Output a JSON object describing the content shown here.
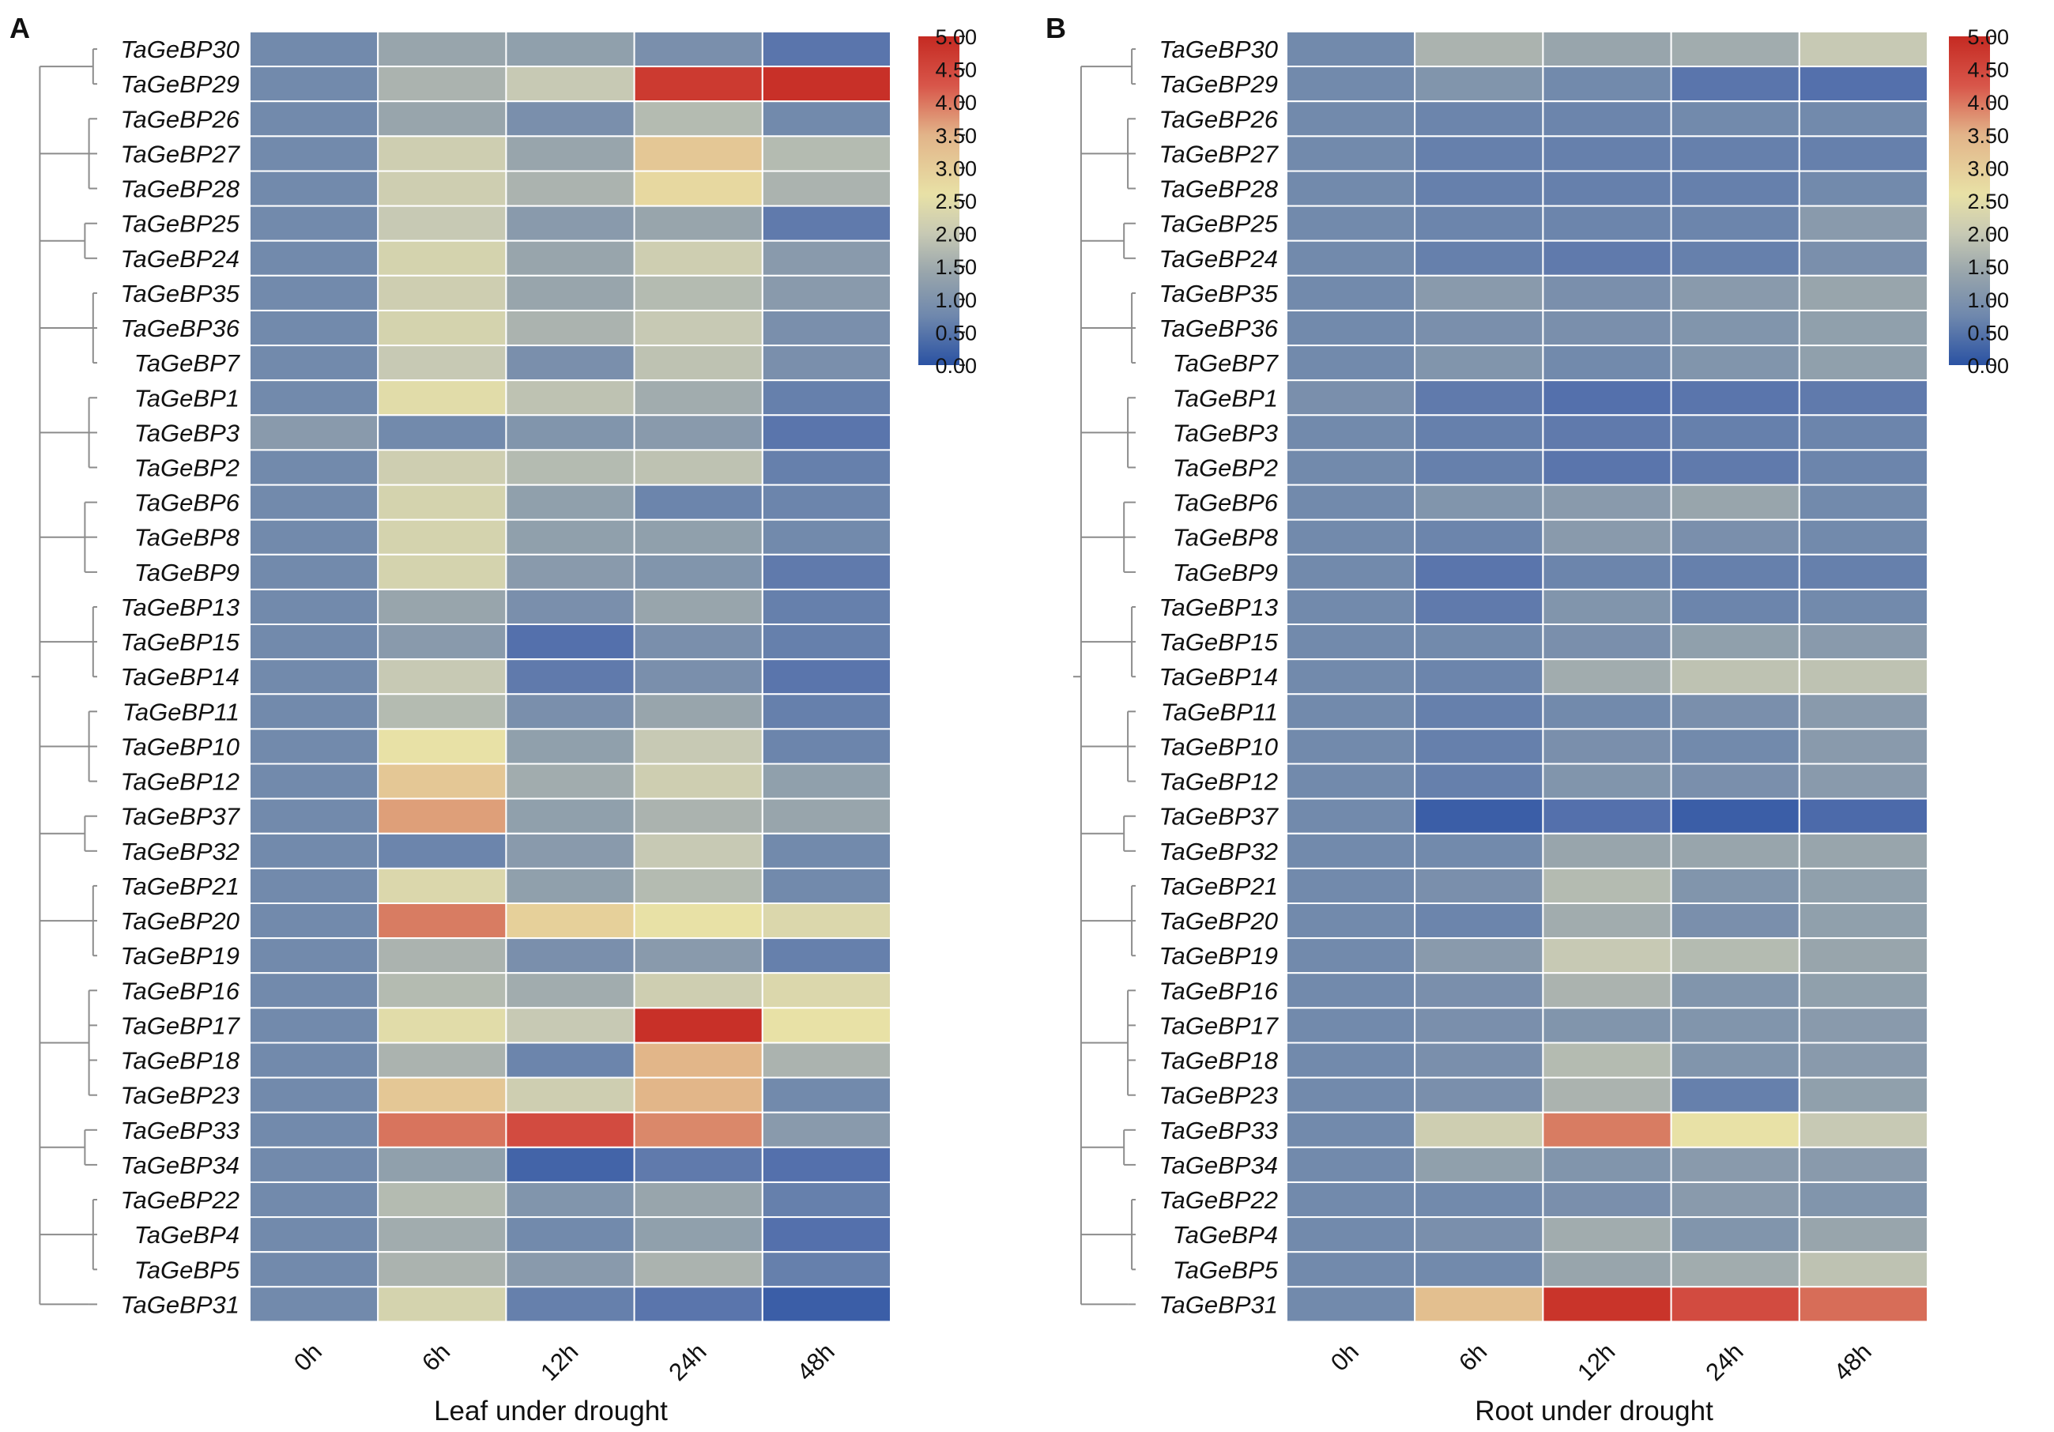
{
  "chart_data": [
    {
      "type": "heatmap",
      "panel_label": "A",
      "xlabel": "Leaf under drought",
      "categories": [
        "0h",
        "6h",
        "12h",
        "24h",
        "48h"
      ],
      "colorbar": {
        "min": 0,
        "max": 5,
        "ticks": [
          "5.00",
          "4.50",
          "4.00",
          "3.50",
          "3.00",
          "2.50",
          "2.00",
          "1.50",
          "1.00",
          "0.50",
          "0.00"
        ]
      },
      "rows": [
        "TaGeBP30",
        "TaGeBP29",
        "TaGeBP26",
        "TaGeBP27",
        "TaGeBP28",
        "TaGeBP25",
        "TaGeBP24",
        "TaGeBP35",
        "TaGeBP36",
        "TaGeBP7",
        "TaGeBP1",
        "TaGeBP3",
        "TaGeBP2",
        "TaGeBP6",
        "TaGeBP8",
        "TaGeBP9",
        "TaGeBP13",
        "TaGeBP15",
        "TaGeBP14",
        "TaGeBP11",
        "TaGeBP10",
        "TaGeBP12",
        "TaGeBP37",
        "TaGeBP32",
        "TaGeBP21",
        "TaGeBP20",
        "TaGeBP19",
        "TaGeBP16",
        "TaGeBP17",
        "TaGeBP18",
        "TaGeBP23",
        "TaGeBP33",
        "TaGeBP34",
        "TaGeBP22",
        "TaGeBP4",
        "TaGeBP5",
        "TaGeBP31"
      ],
      "values": [
        [
          1.0,
          1.5,
          1.4,
          1.1,
          0.6
        ],
        [
          1.0,
          1.7,
          2.0,
          4.5,
          4.8
        ],
        [
          1.0,
          1.5,
          1.1,
          1.8,
          1.0
        ],
        [
          1.0,
          2.1,
          1.5,
          2.8,
          1.8
        ],
        [
          1.0,
          2.1,
          1.7,
          2.6,
          1.7
        ],
        [
          1.0,
          2.0,
          1.3,
          1.5,
          0.7
        ],
        [
          1.0,
          2.2,
          1.5,
          2.1,
          1.3
        ],
        [
          1.0,
          2.1,
          1.5,
          1.8,
          1.3
        ],
        [
          1.0,
          2.2,
          1.7,
          2.0,
          1.1
        ],
        [
          1.0,
          2.0,
          1.1,
          1.9,
          1.1
        ],
        [
          1.0,
          2.4,
          1.9,
          1.6,
          0.8
        ],
        [
          1.3,
          1.0,
          1.2,
          1.3,
          0.6
        ],
        [
          1.0,
          2.1,
          1.8,
          1.9,
          0.8
        ],
        [
          1.0,
          2.2,
          1.4,
          0.9,
          0.9
        ],
        [
          1.0,
          2.2,
          1.4,
          1.4,
          1.0
        ],
        [
          1.0,
          2.2,
          1.3,
          1.2,
          0.7
        ],
        [
          1.0,
          1.5,
          1.1,
          1.5,
          0.8
        ],
        [
          1.0,
          1.3,
          0.5,
          1.1,
          0.8
        ],
        [
          1.0,
          2.0,
          0.7,
          1.1,
          0.6
        ],
        [
          1.0,
          1.8,
          1.1,
          1.5,
          0.8
        ],
        [
          1.0,
          2.5,
          1.4,
          2.0,
          0.9
        ],
        [
          1.0,
          2.8,
          1.6,
          2.1,
          1.4
        ],
        [
          1.0,
          3.2,
          1.4,
          1.7,
          1.5
        ],
        [
          1.0,
          0.9,
          1.3,
          2.0,
          1.0
        ],
        [
          1.0,
          2.3,
          1.4,
          1.8,
          1.0
        ],
        [
          1.0,
          3.5,
          2.7,
          2.5,
          2.3
        ],
        [
          1.0,
          1.7,
          1.1,
          1.3,
          0.8
        ],
        [
          1.0,
          1.8,
          1.6,
          2.1,
          2.3
        ],
        [
          1.0,
          2.4,
          2.0,
          4.8,
          2.5
        ],
        [
          1.0,
          1.7,
          0.9,
          3.0,
          1.7
        ],
        [
          1.0,
          2.8,
          2.1,
          3.0,
          1.0
        ],
        [
          1.0,
          3.6,
          4.2,
          3.4,
          1.3
        ],
        [
          1.0,
          1.4,
          0.3,
          0.7,
          0.5
        ],
        [
          1.0,
          1.8,
          1.2,
          1.5,
          0.8
        ],
        [
          1.0,
          1.6,
          1.0,
          1.4,
          0.5
        ],
        [
          1.0,
          1.7,
          1.3,
          1.7,
          0.8
        ],
        [
          1.0,
          2.2,
          0.8,
          0.6,
          0.2
        ]
      ]
    },
    {
      "type": "heatmap",
      "panel_label": "B",
      "xlabel": "Root under drought",
      "categories": [
        "0h",
        "6h",
        "12h",
        "24h",
        "48h"
      ],
      "colorbar": {
        "min": 0,
        "max": 5,
        "ticks": [
          "5.00",
          "4.50",
          "4.00",
          "3.50",
          "3.00",
          "2.50",
          "2.00",
          "1.50",
          "1.00",
          "0.50",
          "0.00"
        ]
      },
      "rows": [
        "TaGeBP30",
        "TaGeBP29",
        "TaGeBP26",
        "TaGeBP27",
        "TaGeBP28",
        "TaGeBP25",
        "TaGeBP24",
        "TaGeBP35",
        "TaGeBP36",
        "TaGeBP7",
        "TaGeBP1",
        "TaGeBP3",
        "TaGeBP2",
        "TaGeBP6",
        "TaGeBP8",
        "TaGeBP9",
        "TaGeBP13",
        "TaGeBP15",
        "TaGeBP14",
        "TaGeBP11",
        "TaGeBP10",
        "TaGeBP12",
        "TaGeBP37",
        "TaGeBP32",
        "TaGeBP21",
        "TaGeBP20",
        "TaGeBP19",
        "TaGeBP16",
        "TaGeBP17",
        "TaGeBP18",
        "TaGeBP23",
        "TaGeBP33",
        "TaGeBP34",
        "TaGeBP22",
        "TaGeBP4",
        "TaGeBP5",
        "TaGeBP31"
      ],
      "values": [
        [
          1.0,
          1.7,
          1.5,
          1.6,
          2.0
        ],
        [
          1.0,
          1.2,
          1.0,
          0.6,
          0.5
        ],
        [
          1.0,
          0.9,
          0.9,
          1.0,
          1.0
        ],
        [
          1.0,
          0.8,
          0.8,
          0.8,
          0.8
        ],
        [
          1.0,
          0.8,
          0.8,
          0.8,
          1.0
        ],
        [
          1.0,
          0.9,
          0.9,
          0.9,
          1.3
        ],
        [
          1.0,
          0.8,
          0.7,
          0.8,
          1.1
        ],
        [
          1.0,
          1.3,
          1.1,
          1.3,
          1.5
        ],
        [
          1.0,
          1.1,
          1.1,
          1.2,
          1.4
        ],
        [
          1.0,
          1.2,
          1.0,
          1.2,
          1.4
        ],
        [
          1.1,
          0.7,
          0.5,
          0.6,
          0.7
        ],
        [
          1.0,
          0.8,
          0.7,
          0.8,
          0.9
        ],
        [
          1.0,
          0.8,
          0.6,
          0.7,
          0.9
        ],
        [
          1.0,
          1.2,
          1.3,
          1.5,
          1.0
        ],
        [
          1.0,
          0.9,
          1.3,
          1.1,
          1.0
        ],
        [
          1.0,
          0.6,
          0.9,
          0.8,
          0.8
        ],
        [
          1.0,
          0.7,
          1.2,
          0.9,
          1.0
        ],
        [
          1.0,
          1.0,
          1.1,
          1.4,
          1.3
        ],
        [
          1.0,
          0.9,
          1.6,
          1.9,
          1.9
        ],
        [
          1.0,
          0.8,
          1.0,
          1.1,
          1.3
        ],
        [
          1.0,
          0.8,
          1.1,
          1.0,
          1.3
        ],
        [
          1.0,
          0.8,
          1.2,
          1.1,
          1.3
        ],
        [
          1.0,
          0.2,
          0.5,
          0.2,
          0.4
        ],
        [
          1.0,
          1.0,
          1.5,
          1.5,
          1.5
        ],
        [
          1.0,
          1.1,
          1.8,
          1.2,
          1.4
        ],
        [
          1.0,
          0.9,
          1.6,
          1.1,
          1.4
        ],
        [
          1.0,
          1.3,
          2.0,
          1.8,
          1.5
        ],
        [
          1.0,
          1.1,
          1.7,
          1.2,
          1.4
        ],
        [
          1.0,
          1.1,
          1.2,
          1.2,
          1.3
        ],
        [
          1.0,
          1.1,
          1.8,
          1.2,
          1.3
        ],
        [
          1.0,
          1.1,
          1.7,
          0.8,
          1.4
        ],
        [
          1.0,
          2.1,
          3.5,
          2.5,
          2.0
        ],
        [
          1.0,
          1.4,
          1.2,
          1.3,
          1.3
        ],
        [
          1.0,
          1.0,
          1.1,
          1.3,
          1.2
        ],
        [
          1.0,
          1.1,
          1.6,
          1.2,
          1.5
        ],
        [
          1.0,
          1.0,
          1.5,
          1.6,
          1.9
        ],
        [
          1.0,
          2.9,
          4.7,
          4.2,
          3.7
        ]
      ]
    }
  ]
}
